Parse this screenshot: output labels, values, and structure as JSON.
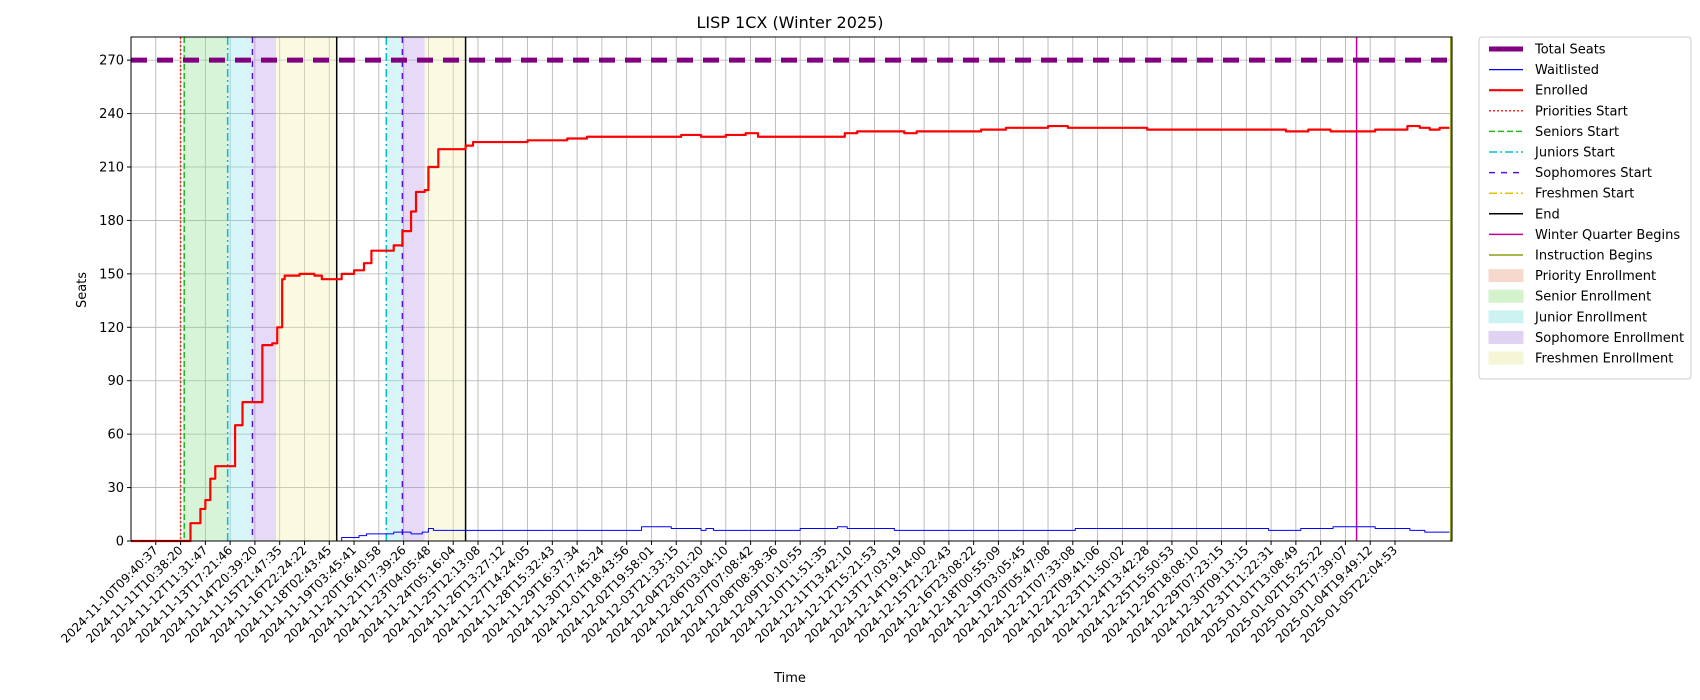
{
  "chart_data": {
    "type": "line",
    "title": "LISP 1CX (Winter 2025)",
    "xlabel": "Time",
    "ylabel": "Seats",
    "ylim": [
      0,
      283
    ],
    "y_ticks": [
      0,
      30,
      60,
      90,
      120,
      150,
      180,
      210,
      240,
      270
    ],
    "grid": true,
    "legend_position": "outside-right",
    "x_tick_labels": [
      "2024-11-10T09:40:37",
      "2024-11-11T10:38:20",
      "2024-11-12T11:31:47",
      "2024-11-13T17:21:46",
      "2024-11-14T20:39:20",
      "2024-11-15T21:47:35",
      "2024-11-16T22:24:22",
      "2024-11-18T02:43:45",
      "2024-11-19T03:45:41",
      "2024-11-20T16:40:58",
      "2024-11-21T17:39:26",
      "2024-11-23T04:05:48",
      "2024-11-24T05:16:04",
      "2024-11-25T12:13:08",
      "2024-11-26T13:27:12",
      "2024-11-27T14:24:05",
      "2024-11-28T15:32:43",
      "2024-11-29T16:37:34",
      "2024-11-30T17:45:24",
      "2024-12-01T18:43:56",
      "2024-12-02T19:58:01",
      "2024-12-03T21:33:15",
      "2024-12-04T23:01:20",
      "2024-12-06T03:04:10",
      "2024-12-07T07:08:42",
      "2024-12-08T08:38:36",
      "2024-12-09T10:10:55",
      "2024-12-10T11:51:35",
      "2024-12-11T13:42:10",
      "2024-12-12T15:21:53",
      "2024-12-13T17:03:19",
      "2024-12-14T19:14:00",
      "2024-12-15T21:22:43",
      "2024-12-16T23:08:22",
      "2024-12-18T00:55:09",
      "2024-12-19T03:05:45",
      "2024-12-20T05:47:08",
      "2024-12-21T07:33:08",
      "2024-12-22T09:41:06",
      "2024-12-23T11:50:02",
      "2024-12-24T13:42:28",
      "2024-12-25T15:50:53",
      "2024-12-26T18:08:10",
      "2024-12-29T07:23:15",
      "2024-12-30T09:13:15",
      "2024-12-31T11:22:31",
      "2025-01-01T13:08:49",
      "2025-01-02T15:25:22",
      "2025-01-03T17:39:07",
      "2025-01-04T19:49:12",
      "2025-01-05T22:04:53"
    ],
    "x_range_index": [
      0,
      52
    ],
    "bands": [
      {
        "name": "Senior Enrollment",
        "start": 2.1,
        "end": 3.9,
        "color": "#90e090"
      },
      {
        "name": "Junior Enrollment",
        "start": 3.9,
        "end": 4.9,
        "color": "#8fe6ea"
      },
      {
        "name": "Sophomore Enrollment",
        "start": 4.9,
        "end": 5.85,
        "color": "#b896e6"
      },
      {
        "name": "Freshmen Enrollment",
        "start": 5.85,
        "end": 8.3,
        "color": "#eef0a8"
      },
      {
        "name": "Junior Enrollment",
        "start": 10.3,
        "end": 10.95,
        "color": "#8fe6ea"
      },
      {
        "name": "Sophomore Enrollment",
        "start": 10.95,
        "end": 11.85,
        "color": "#b896e6"
      },
      {
        "name": "Freshmen Enrollment",
        "start": 11.85,
        "end": 13.5,
        "color": "#eef0a8"
      }
    ],
    "vlines": [
      {
        "name": "Priorities Start",
        "x": 2.0,
        "color": "#ff3020",
        "dash": "2,2"
      },
      {
        "name": "Seniors Start",
        "x": 2.15,
        "color": "#22bb22",
        "dash": "6,3"
      },
      {
        "name": "Juniors Start",
        "x": 3.9,
        "color": "#00c0d0",
        "dash": "8,3,2,3"
      },
      {
        "name": "Sophomores Start",
        "x": 4.9,
        "color": "#5a10d8",
        "dash": "6,6"
      },
      {
        "name": "End",
        "x": 8.3,
        "color": "#000000",
        "dash": ""
      },
      {
        "name": "Juniors Start",
        "x": 10.3,
        "color": "#00c0d0",
        "dash": "8,3,2,3"
      },
      {
        "name": "Sophomores Start",
        "x": 10.95,
        "color": "#5a10d8",
        "dash": "6,6"
      },
      {
        "name": "End",
        "x": 13.5,
        "color": "#000000",
        "dash": ""
      },
      {
        "name": "Winter Quarter Begins",
        "x": 49.45,
        "color": "#cc0099",
        "dash": ""
      },
      {
        "name": "Instruction Begins",
        "x": 53.25,
        "color": "#8aa010",
        "dash": ""
      }
    ],
    "series": [
      {
        "name": "Total Seats",
        "color": "#800080",
        "dash": "16,10",
        "width": 5,
        "points": [
          [
            0,
            270
          ],
          [
            53.25,
            270
          ]
        ]
      },
      {
        "name": "Waitlisted",
        "color": "#0000ff",
        "dash": "",
        "width": 1,
        "points": [
          [
            0,
            0
          ],
          [
            8.3,
            0
          ],
          [
            8.5,
            2
          ],
          [
            9.2,
            3
          ],
          [
            9.5,
            4
          ],
          [
            10.6,
            5
          ],
          [
            11.3,
            4
          ],
          [
            11.75,
            5
          ],
          [
            12.0,
            7
          ],
          [
            12.2,
            6
          ],
          [
            20.5,
            6
          ],
          [
            20.6,
            8
          ],
          [
            21.8,
            7
          ],
          [
            23.0,
            6
          ],
          [
            23.2,
            7
          ],
          [
            23.5,
            6
          ],
          [
            27.0,
            7
          ],
          [
            28.5,
            8
          ],
          [
            28.9,
            7
          ],
          [
            30.8,
            6
          ],
          [
            38.1,
            7
          ],
          [
            45.9,
            6
          ],
          [
            47.2,
            7
          ],
          [
            48.5,
            8
          ],
          [
            50.2,
            7
          ],
          [
            51.6,
            6
          ],
          [
            52.2,
            5
          ],
          [
            53.2,
            5
          ]
        ]
      },
      {
        "name": "Enrolled",
        "color": "#ff0000",
        "dash": "",
        "width": 2.2,
        "points": [
          [
            0,
            0
          ],
          [
            2.0,
            0
          ],
          [
            2.4,
            10
          ],
          [
            2.8,
            18
          ],
          [
            3.0,
            23
          ],
          [
            3.2,
            35
          ],
          [
            3.4,
            42
          ],
          [
            3.8,
            42
          ],
          [
            4.2,
            65
          ],
          [
            4.5,
            78
          ],
          [
            4.9,
            78
          ],
          [
            5.3,
            110
          ],
          [
            5.7,
            111
          ],
          [
            5.9,
            120
          ],
          [
            6.1,
            147
          ],
          [
            6.2,
            149
          ],
          [
            6.8,
            150
          ],
          [
            7.4,
            149
          ],
          [
            7.7,
            147
          ],
          [
            8.3,
            147
          ],
          [
            8.5,
            150
          ],
          [
            9.0,
            152
          ],
          [
            9.4,
            156
          ],
          [
            9.7,
            163
          ],
          [
            10.3,
            163
          ],
          [
            10.6,
            166
          ],
          [
            10.95,
            174
          ],
          [
            11.3,
            185
          ],
          [
            11.5,
            196
          ],
          [
            11.85,
            197
          ],
          [
            12.0,
            210
          ],
          [
            12.4,
            220
          ],
          [
            13.0,
            220
          ],
          [
            13.5,
            222
          ],
          [
            13.8,
            224
          ],
          [
            15.6,
            224
          ],
          [
            16.0,
            225
          ],
          [
            17.3,
            225
          ],
          [
            17.6,
            226
          ],
          [
            18.4,
            227
          ],
          [
            22.2,
            228
          ],
          [
            23.0,
            227
          ],
          [
            24.0,
            228
          ],
          [
            24.8,
            229
          ],
          [
            25.3,
            227
          ],
          [
            27.0,
            227
          ],
          [
            28.5,
            227
          ],
          [
            28.8,
            229
          ],
          [
            29.3,
            230
          ],
          [
            31.2,
            229
          ],
          [
            31.7,
            230
          ],
          [
            34.3,
            231
          ],
          [
            35.3,
            232
          ],
          [
            37.0,
            233
          ],
          [
            37.8,
            232
          ],
          [
            39.0,
            232
          ],
          [
            41.0,
            231
          ],
          [
            45.8,
            231
          ],
          [
            46.6,
            230
          ],
          [
            47.5,
            231
          ],
          [
            48.4,
            230
          ],
          [
            49.7,
            230
          ],
          [
            50.2,
            231
          ],
          [
            51.5,
            233
          ],
          [
            52.0,
            232
          ],
          [
            52.4,
            231
          ],
          [
            52.8,
            232
          ],
          [
            53.2,
            232
          ]
        ]
      }
    ],
    "legend": [
      {
        "label": "Total Seats",
        "kind": "line",
        "color": "#800080",
        "dash": "",
        "width": 5
      },
      {
        "label": "Waitlisted",
        "kind": "line",
        "color": "#0000ff",
        "dash": "",
        "width": 1.2
      },
      {
        "label": "Enrolled",
        "kind": "line",
        "color": "#ff0000",
        "dash": "",
        "width": 2.2
      },
      {
        "label": "Priorities Start",
        "kind": "line",
        "color": "#ff3020",
        "dash": "2,2",
        "width": 1.5
      },
      {
        "label": "Seniors Start",
        "kind": "line",
        "color": "#22bb22",
        "dash": "6,3",
        "width": 1.5
      },
      {
        "label": "Juniors Start",
        "kind": "line",
        "color": "#00c0d0",
        "dash": "8,3,2,3",
        "width": 1.5
      },
      {
        "label": "Sophomores Start",
        "kind": "line",
        "color": "#5a10d8",
        "dash": "6,6",
        "width": 1.5
      },
      {
        "label": "Freshmen Start",
        "kind": "line",
        "color": "#e8c000",
        "dash": "8,3,2,3",
        "width": 1.5
      },
      {
        "label": "End",
        "kind": "line",
        "color": "#000000",
        "dash": "",
        "width": 1.5
      },
      {
        "label": "Winter Quarter Begins",
        "kind": "line",
        "color": "#cc0099",
        "dash": "",
        "width": 1.5
      },
      {
        "label": "Instruction Begins",
        "kind": "line",
        "color": "#8aa010",
        "dash": "",
        "width": 1.5
      },
      {
        "label": "Priority Enrollment",
        "kind": "patch",
        "color": "#f6d9cc"
      },
      {
        "label": "Senior Enrollment",
        "kind": "patch",
        "color": "#d4f2cc"
      },
      {
        "label": "Junior Enrollment",
        "kind": "patch",
        "color": "#cdf2f2"
      },
      {
        "label": "Sophomore Enrollment",
        "kind": "patch",
        "color": "#e0d2f2"
      },
      {
        "label": "Freshmen Enrollment",
        "kind": "patch",
        "color": "#f5f6d6"
      }
    ]
  }
}
